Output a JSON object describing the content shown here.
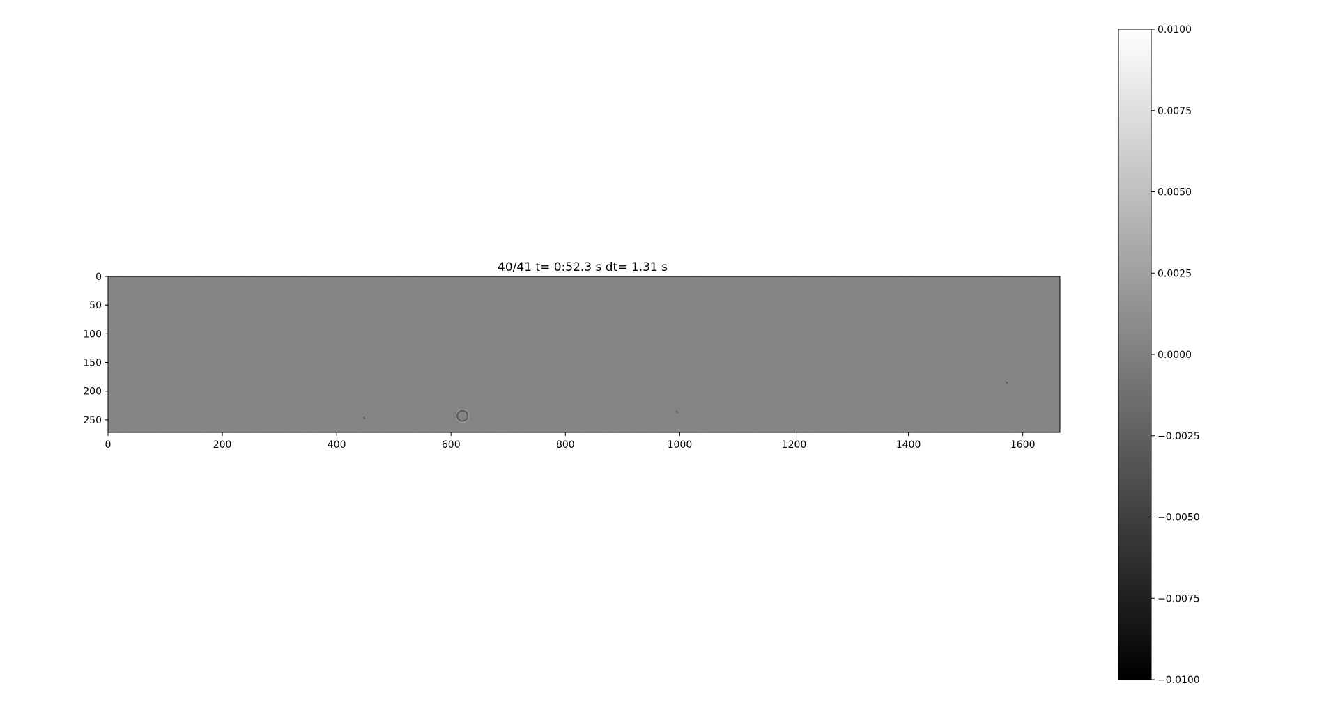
{
  "chart_data": {
    "type": "heatmap",
    "title": "40/41  t= 0:52.3 s dt= 1.31 s",
    "xlabel": "",
    "ylabel": "",
    "image_shape": [
      272,
      1665
    ],
    "xlim": [
      0,
      1665
    ],
    "ylim": [
      272,
      0
    ],
    "x_ticks": [
      0,
      200,
      400,
      600,
      800,
      1000,
      1200,
      1400,
      1600
    ],
    "x_tick_labels": [
      "0",
      "200",
      "400",
      "600",
      "800",
      "1000",
      "1200",
      "1400",
      "1600"
    ],
    "y_ticks": [
      0,
      50,
      100,
      150,
      200,
      250
    ],
    "y_tick_labels": [
      "0",
      "50",
      "100",
      "150",
      "200",
      "250"
    ],
    "colormap": "gray",
    "value_range": [
      -0.01,
      0.01
    ],
    "dominant_value": 0.0,
    "grid": false,
    "features": [
      {
        "type": "ring",
        "x": 620,
        "y": 243,
        "r": 9
      },
      {
        "type": "speck",
        "x": 995,
        "y": 236
      },
      {
        "type": "speck",
        "x": 1572,
        "y": 185
      },
      {
        "type": "speck",
        "x": 448,
        "y": 247
      }
    ],
    "colorbar": {
      "range": [
        -0.01,
        0.01
      ],
      "ticks": [
        0.01,
        0.0075,
        0.005,
        0.0025,
        0.0,
        -0.0025,
        -0.005,
        -0.0075,
        -0.01
      ],
      "tick_labels": [
        "0.0100",
        "0.0075",
        "0.0050",
        "0.0025",
        "0.0000",
        "−0.0025",
        "−0.0050",
        "−0.0075",
        "−0.0100"
      ]
    }
  }
}
